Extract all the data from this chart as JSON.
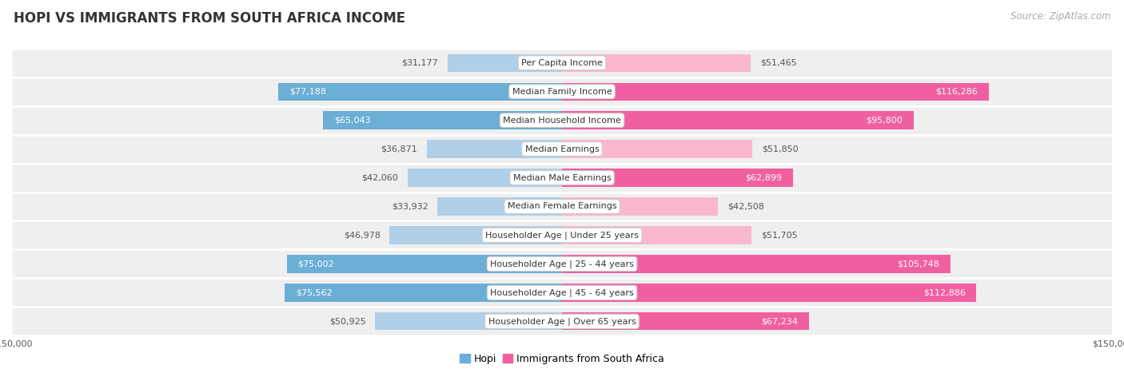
{
  "title": "HOPI VS IMMIGRANTS FROM SOUTH AFRICA INCOME",
  "source": "Source: ZipAtlas.com",
  "categories": [
    "Per Capita Income",
    "Median Family Income",
    "Median Household Income",
    "Median Earnings",
    "Median Male Earnings",
    "Median Female Earnings",
    "Householder Age | Under 25 years",
    "Householder Age | 25 - 44 years",
    "Householder Age | 45 - 64 years",
    "Householder Age | Over 65 years"
  ],
  "hopi_values": [
    31177,
    77188,
    65043,
    36871,
    42060,
    33932,
    46978,
    75002,
    75562,
    50925
  ],
  "immigrant_values": [
    51465,
    116286,
    95800,
    51850,
    62899,
    42508,
    51705,
    105748,
    112886,
    67234
  ],
  "hopi_color_strong": "#6baed6",
  "hopi_color_light": "#b0cfe8",
  "immigrant_color_strong": "#f060a0",
  "immigrant_color_light": "#f9b8cc",
  "max_value": 150000,
  "bar_height": 0.62,
  "background_color": "#ffffff",
  "row_bg_color": "#efefef",
  "row_gap_color": "#ffffff",
  "title_fontsize": 12,
  "source_fontsize": 8.5,
  "bar_label_fontsize": 8,
  "category_fontsize": 8,
  "legend_fontsize": 9,
  "axis_label_fontsize": 8,
  "strong_threshold": 60000,
  "white_label_threshold": 55000
}
